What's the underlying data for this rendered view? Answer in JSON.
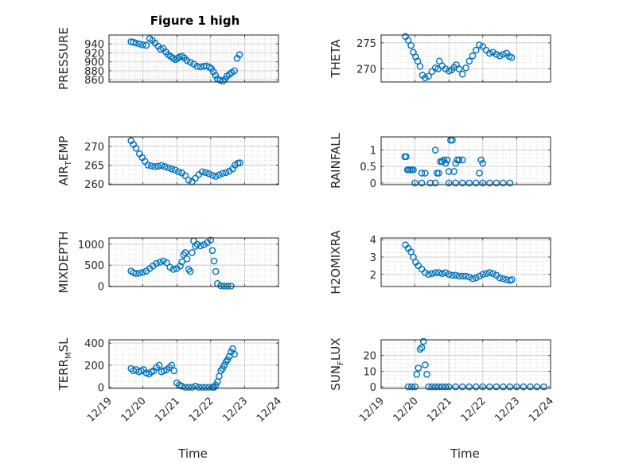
{
  "figure": {
    "title": "Figure 1 high",
    "marker_color": "#0072BD",
    "grid": true,
    "xtick_labels": [
      "12/19",
      "12/20",
      "12/21",
      "12/22",
      "12/23",
      "12/24"
    ]
  },
  "chart_data": [
    {
      "type": "scatter",
      "ylabel": "PRESSURE",
      "xlabel": "",
      "xlim": [
        0,
        5
      ],
      "ylim": [
        855,
        960
      ],
      "yticks": [
        860,
        880,
        900,
        920,
        940
      ],
      "x": [
        0.65,
        0.72,
        0.8,
        0.9,
        1.0,
        1.1,
        1.2,
        1.28,
        1.36,
        1.45,
        1.52,
        1.6,
        1.68,
        1.75,
        1.82,
        1.9,
        1.96,
        2.02,
        2.08,
        2.15,
        2.22,
        2.3,
        2.4,
        2.5,
        2.6,
        2.7,
        2.8,
        2.88,
        2.96,
        3.02,
        3.08,
        3.14,
        3.2,
        3.28,
        3.36,
        3.42,
        3.48,
        3.55,
        3.62,
        3.7,
        3.78,
        3.85
      ],
      "y": [
        945,
        944,
        942,
        940,
        938,
        937,
        952,
        948,
        942,
        935,
        928,
        930,
        922,
        916,
        912,
        908,
        905,
        908,
        911,
        913,
        909,
        903,
        899,
        895,
        890,
        889,
        890,
        891,
        888,
        885,
        878,
        870,
        862,
        859,
        857,
        861,
        868,
        872,
        876,
        880,
        908,
        916
      ]
    },
    {
      "type": "scatter",
      "ylabel": "THETA",
      "xlabel": "",
      "xlim": [
        0,
        5
      ],
      "ylim": [
        267.5,
        276.5
      ],
      "yticks": [
        270,
        275
      ],
      "x": [
        0.72,
        0.8,
        0.88,
        0.95,
        1.02,
        1.08,
        1.15,
        1.22,
        1.3,
        1.4,
        1.5,
        1.6,
        1.68,
        1.72,
        1.8,
        1.9,
        2.0,
        2.08,
        2.15,
        2.22,
        2.3,
        2.4,
        2.5,
        2.6,
        2.7,
        2.8,
        2.9,
        3.0,
        3.1,
        3.2,
        3.3,
        3.4,
        3.5,
        3.6,
        3.7,
        3.78,
        3.85
      ],
      "y": [
        276.2,
        275.5,
        274.5,
        273.2,
        272.3,
        271.5,
        270.5,
        268.8,
        268.3,
        268.6,
        269.5,
        270.2,
        270.0,
        271.5,
        270.6,
        270.0,
        269.6,
        269.8,
        270.3,
        270.8,
        270.0,
        269.0,
        270.2,
        271.5,
        272.5,
        273.6,
        274.6,
        274.3,
        273.6,
        273.0,
        273.2,
        272.8,
        272.5,
        272.8,
        273.0,
        272.4,
        272.2
      ]
    },
    {
      "type": "scatter",
      "ylabel": "AIR_TEMP",
      "xlabel": "",
      "xlim": [
        0,
        5
      ],
      "ylim": [
        259.8,
        272.5
      ],
      "yticks": [
        260,
        265,
        270
      ],
      "x": [
        0.65,
        0.72,
        0.8,
        0.9,
        0.98,
        1.06,
        1.15,
        1.25,
        1.35,
        1.45,
        1.55,
        1.65,
        1.75,
        1.85,
        1.95,
        2.05,
        2.15,
        2.25,
        2.35,
        2.45,
        2.55,
        2.65,
        2.75,
        2.85,
        2.95,
        3.05,
        3.15,
        3.25,
        3.35,
        3.45,
        3.55,
        3.65,
        3.72,
        3.8,
        3.86
      ],
      "y": [
        271.5,
        270.5,
        269.5,
        268.0,
        267.0,
        266.0,
        265.0,
        264.8,
        264.6,
        264.7,
        264.9,
        264.6,
        264.3,
        264.0,
        263.7,
        263.2,
        262.9,
        262.2,
        261.0,
        260.6,
        261.5,
        262.5,
        263.2,
        263.0,
        262.7,
        262.3,
        262.0,
        262.4,
        262.8,
        263.0,
        263.4,
        264.0,
        265.0,
        265.5,
        265.6
      ]
    },
    {
      "type": "scatter",
      "ylabel": "RAINFALL",
      "xlabel": "",
      "xlim": [
        0,
        5
      ],
      "ylim": [
        -0.05,
        1.4
      ],
      "yticks": [
        0,
        0.5,
        1
      ],
      "x": [
        0.7,
        0.74,
        0.78,
        0.8,
        0.85,
        0.9,
        0.95,
        1.2,
        1.3,
        1.6,
        1.65,
        1.7,
        1.75,
        1.8,
        1.85,
        1.9,
        1.95,
        2.0,
        2.05,
        2.1,
        2.15,
        2.2,
        2.25,
        2.3,
        2.4,
        2.9,
        2.95,
        3.0,
        1.0,
        1.2,
        1.45,
        1.6,
        2.0,
        2.2,
        2.4,
        2.6,
        2.8,
        3.0,
        3.2,
        3.4,
        3.6,
        3.8
      ],
      "y": [
        0.8,
        0.8,
        0.4,
        0.4,
        0.4,
        0.4,
        0.4,
        0.3,
        0.3,
        1.0,
        0.3,
        0.3,
        0.65,
        0.65,
        0.7,
        0.6,
        0.7,
        0.35,
        1.3,
        1.3,
        0.35,
        0.6,
        0.7,
        0.7,
        0.7,
        0.3,
        0.7,
        0.6,
        0,
        0,
        0,
        0,
        0,
        0,
        0,
        0,
        0,
        0,
        0,
        0,
        0,
        0
      ]
    },
    {
      "type": "scatter",
      "ylabel": "MIXDEPTH",
      "xlabel": "",
      "xlim": [
        0,
        5
      ],
      "ylim": [
        -10,
        1150
      ],
      "yticks": [
        0,
        500,
        1000
      ],
      "x": [
        0.65,
        0.72,
        0.8,
        0.9,
        1.0,
        1.1,
        1.2,
        1.3,
        1.4,
        1.5,
        1.6,
        1.7,
        1.8,
        1.9,
        2.0,
        2.1,
        2.15,
        2.2,
        2.25,
        2.3,
        2.35,
        2.4,
        2.45,
        2.5,
        2.55,
        2.6,
        2.7,
        2.8,
        2.9,
        3.0,
        3.05,
        3.1,
        3.15,
        3.2,
        3.3,
        3.4,
        3.5,
        3.6
      ],
      "y": [
        360,
        320,
        300,
        310,
        330,
        360,
        420,
        480,
        540,
        570,
        600,
        560,
        450,
        400,
        420,
        480,
        580,
        750,
        800,
        650,
        400,
        350,
        800,
        1080,
        950,
        1000,
        960,
        990,
        1040,
        1100,
        850,
        600,
        350,
        60,
        10,
        0,
        0,
        0
      ]
    },
    {
      "type": "scatter",
      "ylabel": "H2OMIXRA",
      "xlabel": "",
      "xlim": [
        0,
        5
      ],
      "ylim": [
        1.3,
        4.1
      ],
      "yticks": [
        2,
        3,
        4
      ],
      "x": [
        0.72,
        0.8,
        0.88,
        0.95,
        1.02,
        1.1,
        1.2,
        1.3,
        1.4,
        1.5,
        1.6,
        1.7,
        1.8,
        1.9,
        2.0,
        2.1,
        2.2,
        2.3,
        2.4,
        2.5,
        2.6,
        2.7,
        2.8,
        2.9,
        3.0,
        3.1,
        3.2,
        3.3,
        3.4,
        3.5,
        3.6,
        3.7,
        3.8,
        3.86
      ],
      "y": [
        3.7,
        3.5,
        3.3,
        3.0,
        2.7,
        2.5,
        2.3,
        2.1,
        2.0,
        2.05,
        2.1,
        2.1,
        2.05,
        2.1,
        2.0,
        1.95,
        1.95,
        1.9,
        1.9,
        1.9,
        1.85,
        1.75,
        1.8,
        1.9,
        2.0,
        2.05,
        2.1,
        2.05,
        1.95,
        1.8,
        1.75,
        1.7,
        1.65,
        1.7
      ]
    },
    {
      "type": "scatter",
      "ylabel": "TERR_MSL",
      "xlabel": "Time",
      "xlim": [
        0,
        5
      ],
      "ylim": [
        -10,
        430
      ],
      "yticks": [
        0,
        200,
        400
      ],
      "x": [
        0.65,
        0.72,
        0.8,
        0.88,
        0.95,
        1.02,
        1.1,
        1.18,
        1.25,
        1.32,
        1.4,
        1.48,
        1.55,
        1.62,
        1.7,
        1.78,
        1.85,
        1.92,
        2.0,
        2.08,
        2.15,
        2.25,
        2.35,
        2.45,
        2.55,
        2.65,
        2.75,
        2.85,
        2.95,
        3.05,
        3.1,
        3.15,
        3.2,
        3.25,
        3.3,
        3.35,
        3.4,
        3.45,
        3.5,
        3.55,
        3.6,
        3.65,
        3.7
      ],
      "y": [
        170,
        150,
        160,
        140,
        150,
        160,
        130,
        120,
        140,
        150,
        180,
        200,
        140,
        150,
        160,
        180,
        200,
        150,
        40,
        20,
        10,
        0,
        0,
        0,
        10,
        0,
        0,
        0,
        0,
        0,
        0,
        20,
        50,
        100,
        150,
        170,
        200,
        230,
        250,
        280,
        320,
        350,
        300
      ]
    },
    {
      "type": "scatter",
      "ylabel": "SUN_FLUX",
      "xlabel": "Time",
      "xlim": [
        0,
        5
      ],
      "ylim": [
        -1,
        30
      ],
      "yticks": [
        0,
        10,
        20
      ],
      "x": [
        0.8,
        0.9,
        1.0,
        1.05,
        1.1,
        1.15,
        1.2,
        1.25,
        1.3,
        1.35,
        1.4,
        1.5,
        1.6,
        1.7,
        1.8,
        1.9,
        2.0,
        2.2,
        2.4,
        2.6,
        2.8,
        3.0,
        3.2,
        3.4,
        3.6,
        3.8,
        4.0,
        4.2,
        4.4,
        4.6,
        4.8
      ],
      "y": [
        0,
        0,
        0,
        8,
        12,
        24,
        25,
        29,
        14,
        8,
        0,
        0,
        0,
        0,
        0,
        0,
        0,
        0,
        0,
        0,
        0,
        0,
        0,
        0,
        0,
        0,
        0,
        0,
        0,
        0,
        0
      ]
    }
  ]
}
